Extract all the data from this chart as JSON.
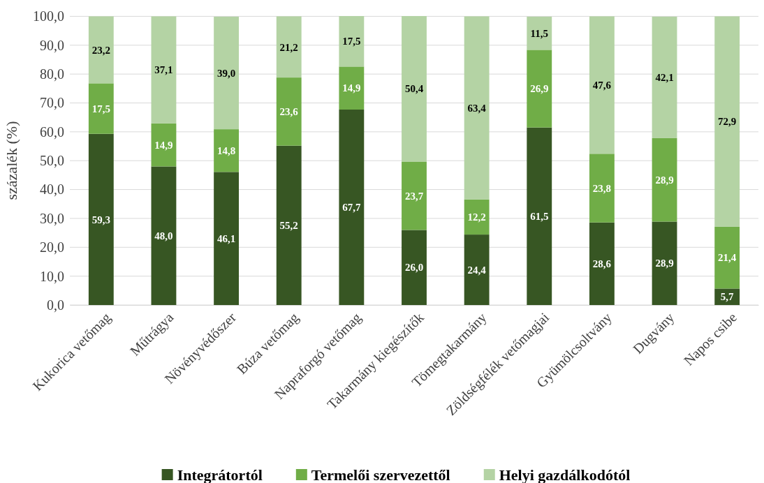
{
  "chart_data": {
    "type": "bar",
    "stacked": true,
    "ylabel": "százalék (%)",
    "categories": [
      "Kukorica vetőmag",
      "Műtrágya",
      "Növényvédőszer",
      "Búza vetőmag",
      "Napraforgó vetőmag",
      "Takarmány kiegészítők",
      "Tömegtakarmány",
      "Zöldségfélék vetőmagjai",
      "Gyümölcsoltvány",
      "Dugvány",
      "Napos csibe"
    ],
    "series": [
      {
        "name": "Integrátortól",
        "color": "#375623",
        "values": [
          59.3,
          48.0,
          46.1,
          55.2,
          67.7,
          26.0,
          24.4,
          61.5,
          28.6,
          28.9,
          5.7
        ],
        "value_labels": [
          "59,3",
          "48,0",
          "46,1",
          "55,2",
          "67,7",
          "26,0",
          "24,4",
          "61,5",
          "28,6",
          "28,9",
          "5,7"
        ]
      },
      {
        "name": "Termelői szervezettől",
        "color": "#70ad47",
        "values": [
          17.5,
          14.9,
          14.8,
          23.6,
          14.9,
          23.7,
          12.2,
          26.9,
          23.8,
          28.9,
          21.4
        ],
        "value_labels": [
          "17,5",
          "14,9",
          "14,8",
          "23,6",
          "14,9",
          "23,7",
          "12,2",
          "26,9",
          "23,8",
          "28,9",
          "21,4"
        ]
      },
      {
        "name": "Helyi gazdálkodótól",
        "color": "#b4d3a4",
        "values": [
          23.2,
          37.1,
          39.0,
          21.2,
          17.5,
          50.4,
          63.4,
          11.5,
          47.6,
          42.1,
          72.9
        ],
        "value_labels": [
          "23,2",
          "37,1",
          "39,0",
          "21,2",
          "17,5",
          "50,4",
          "63,4",
          "11,5",
          "47,6",
          "42,1",
          "72,9"
        ]
      }
    ],
    "ylim": [
      0,
      100.1
    ],
    "yticks": [
      {
        "value": 0,
        "label": "0,0"
      },
      {
        "value": 10,
        "label": "10,0"
      },
      {
        "value": 20,
        "label": "20,0"
      },
      {
        "value": 30,
        "label": "30,0"
      },
      {
        "value": 40,
        "label": "40,0"
      },
      {
        "value": 50,
        "label": "50,0"
      },
      {
        "value": 60,
        "label": "60,0"
      },
      {
        "value": 70,
        "label": "70,0"
      },
      {
        "value": 80,
        "label": "80,0"
      },
      {
        "value": 90,
        "label": "90,0"
      },
      {
        "value": 100,
        "label": "100,0"
      }
    ],
    "grid": "y",
    "legend": "bottom"
  }
}
